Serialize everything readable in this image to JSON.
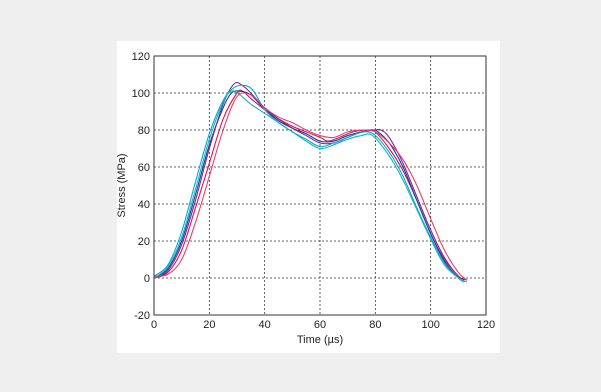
{
  "chart_data": {
    "type": "line",
    "xlabel": "Time (µs)",
    "ylabel": "Stress (MPa)",
    "xlim": [
      0,
      120
    ],
    "ylim": [
      -20,
      120
    ],
    "xticks": [
      0,
      20,
      40,
      60,
      80,
      100,
      120
    ],
    "yticks": [
      -20,
      0,
      20,
      40,
      60,
      80,
      100,
      120
    ],
    "grid": true,
    "series": [
      {
        "color": "#d4145a",
        "x": [
          0,
          5,
          10,
          15,
          20,
          25,
          30,
          32,
          35,
          40,
          45,
          50,
          55,
          60,
          63,
          67,
          72,
          78,
          80,
          85,
          90,
          95,
          100,
          105,
          110,
          112
        ],
        "y": [
          0,
          3,
          15,
          38,
          62,
          86,
          100,
          101,
          97,
          91,
          86,
          82,
          79,
          76,
          74,
          76,
          79,
          80,
          79,
          70,
          58,
          42,
          24,
          10,
          1,
          -1
        ]
      },
      {
        "color": "#1e3ca0",
        "x": [
          0,
          5,
          10,
          15,
          20,
          25,
          28,
          31,
          35,
          40,
          45,
          50,
          55,
          60,
          65,
          70,
          75,
          79,
          81,
          85,
          90,
          95,
          100,
          105,
          110,
          112
        ],
        "y": [
          0,
          5,
          20,
          45,
          72,
          92,
          100,
          101,
          99,
          91,
          85,
          81,
          78,
          74,
          74,
          77,
          79,
          80,
          79,
          73,
          60,
          42,
          24,
          9,
          0,
          -2
        ]
      },
      {
        "color": "#7a2c8f",
        "x": [
          0,
          5,
          10,
          15,
          20,
          25,
          29,
          32,
          35,
          40,
          45,
          50,
          55,
          60,
          65,
          70,
          75,
          80,
          82,
          85,
          90,
          95,
          100,
          105,
          110,
          113
        ],
        "y": [
          0,
          4,
          18,
          42,
          70,
          94,
          105,
          104,
          100,
          92,
          86,
          81,
          77,
          73,
          73,
          76,
          79,
          80,
          80,
          76,
          62,
          44,
          26,
          11,
          1,
          -1
        ]
      },
      {
        "color": "#00aeca",
        "x": [
          0,
          5,
          10,
          15,
          20,
          25,
          29,
          33,
          36,
          40,
          45,
          50,
          55,
          60,
          65,
          70,
          76,
          80,
          85,
          90,
          95,
          100,
          105,
          110,
          113
        ],
        "y": [
          1,
          7,
          25,
          52,
          78,
          96,
          103,
          104,
          101,
          91,
          84,
          79,
          75,
          71,
          73,
          76,
          79,
          77,
          68,
          55,
          38,
          22,
          8,
          0,
          -2
        ]
      },
      {
        "color": "#20b0b8",
        "x": [
          0,
          5,
          10,
          15,
          20,
          25,
          28,
          31,
          35,
          40,
          45,
          50,
          55,
          60,
          65,
          70,
          75,
          79,
          85,
          90,
          95,
          100,
          105,
          110,
          112
        ],
        "y": [
          0,
          6,
          22,
          48,
          75,
          95,
          101,
          99,
          94,
          89,
          84,
          79,
          74,
          70,
          72,
          75,
          77,
          77,
          66,
          53,
          37,
          21,
          7,
          0,
          -2
        ]
      },
      {
        "color": "#e0406a",
        "x": [
          0,
          5,
          10,
          15,
          20,
          25,
          30,
          35,
          40,
          45,
          50,
          55,
          60,
          65,
          70,
          75,
          80,
          85,
          90,
          95,
          100,
          105,
          110,
          113
        ],
        "y": [
          1,
          2,
          10,
          30,
          55,
          80,
          98,
          99,
          92,
          87,
          84,
          80,
          77,
          76,
          79,
          80,
          79,
          73,
          64,
          50,
          32,
          15,
          3,
          -1
        ]
      }
    ]
  }
}
